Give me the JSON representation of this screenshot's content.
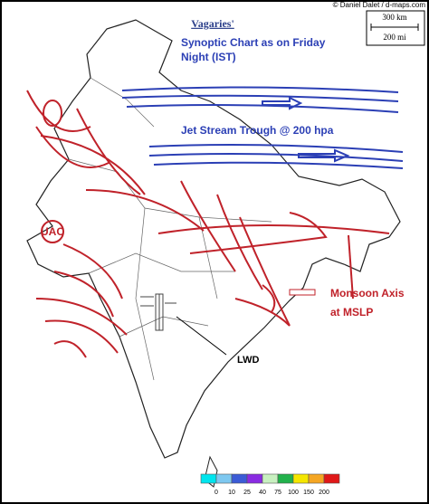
{
  "credit": "© Daniel Dalet / d-maps.com",
  "scale": {
    "km": "300 km",
    "mi": "200 mi"
  },
  "header": {
    "title": "Vagaries'",
    "subtitle": [
      "Synoptic Chart as on Friday",
      "Night (IST)"
    ]
  },
  "annotations": {
    "jet_stream": "Jet Stream Trough @ 200 hpa",
    "uac": "UAC",
    "monsoon_axis": [
      "Monsoon Axis",
      "at MSLP"
    ],
    "lwd": "LWD"
  },
  "legend": {
    "labels": [
      0,
      10,
      25,
      40,
      75,
      100,
      150,
      200
    ],
    "colors": [
      "#00e5ee",
      "#7ec8f0",
      "#3b5bd6",
      "#8a2be2",
      "#c8f0c0",
      "#22b14c",
      "#f5e600",
      "#f5a623",
      "#e01818"
    ]
  }
}
